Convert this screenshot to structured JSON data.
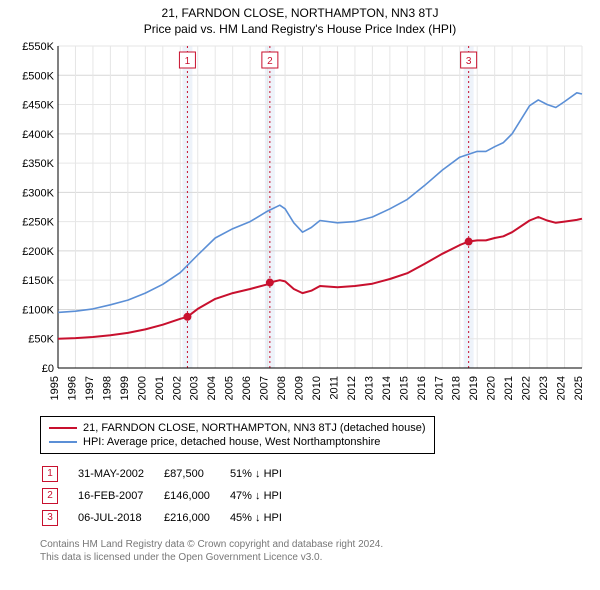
{
  "title_line1": "21, FARNDON CLOSE, NORTHAMPTON, NN3 8TJ",
  "title_line2": "Price paid vs. HM Land Registry's House Price Index (HPI)",
  "chart": {
    "type": "line",
    "background_color": "#ffffff",
    "grid_color": "#e6e6e6",
    "grid_emph_color": "#d7d7d7",
    "axis_color": "#000000",
    "label_fontsize": 11,
    "ylim": [
      0,
      550000
    ],
    "ytick_step": 50000,
    "ytick_prefix": "£",
    "ytick_suffix": "K",
    "x_years": [
      1995,
      1996,
      1997,
      1998,
      1999,
      2000,
      2001,
      2002,
      2003,
      2004,
      2005,
      2006,
      2007,
      2008,
      2009,
      2010,
      2011,
      2012,
      2013,
      2014,
      2015,
      2016,
      2017,
      2018,
      2019,
      2020,
      2021,
      2022,
      2023,
      2024,
      2025
    ],
    "marker_line_color": "#c8102e",
    "marker_fill_color": "#c8102e",
    "marker_band_color": "#e7eef8",
    "marker_box_border": "#c8102e",
    "marker_box_text": "#c8102e",
    "series": [
      {
        "name": "property",
        "label": "21, FARNDON CLOSE, NORTHAMPTON, NN3 8TJ (detached house)",
        "color": "#c8102e",
        "line_width": 2,
        "data": [
          [
            1995.0,
            50000
          ],
          [
            1996.0,
            51000
          ],
          [
            1997.0,
            53000
          ],
          [
            1998.0,
            56000
          ],
          [
            1999.0,
            60000
          ],
          [
            2000.0,
            66000
          ],
          [
            2001.0,
            74000
          ],
          [
            2002.0,
            84000
          ],
          [
            2002.41,
            87500
          ],
          [
            2003.0,
            101000
          ],
          [
            2004.0,
            118000
          ],
          [
            2005.0,
            128000
          ],
          [
            2006.0,
            135000
          ],
          [
            2007.0,
            143000
          ],
          [
            2007.13,
            146000
          ],
          [
            2007.7,
            150000
          ],
          [
            2008.0,
            148000
          ],
          [
            2008.5,
            135000
          ],
          [
            2009.0,
            128000
          ],
          [
            2009.5,
            132000
          ],
          [
            2010.0,
            140000
          ],
          [
            2011.0,
            138000
          ],
          [
            2012.0,
            140000
          ],
          [
            2013.0,
            144000
          ],
          [
            2014.0,
            152000
          ],
          [
            2015.0,
            162000
          ],
          [
            2016.0,
            178000
          ],
          [
            2017.0,
            195000
          ],
          [
            2018.0,
            210000
          ],
          [
            2018.51,
            216000
          ],
          [
            2019.0,
            218000
          ],
          [
            2019.5,
            218000
          ],
          [
            2020.0,
            222000
          ],
          [
            2020.5,
            225000
          ],
          [
            2021.0,
            232000
          ],
          [
            2022.0,
            252000
          ],
          [
            2022.5,
            258000
          ],
          [
            2023.0,
            252000
          ],
          [
            2023.5,
            248000
          ],
          [
            2024.0,
            250000
          ],
          [
            2024.7,
            253000
          ],
          [
            2025.0,
            255000
          ]
        ]
      },
      {
        "name": "hpi",
        "label": "HPI: Average price, detached house, West Northamptonshire",
        "color": "#5b8fd6",
        "line_width": 1.6,
        "data": [
          [
            1995.0,
            95000
          ],
          [
            1996.0,
            97000
          ],
          [
            1997.0,
            101000
          ],
          [
            1998.0,
            108000
          ],
          [
            1999.0,
            116000
          ],
          [
            2000.0,
            128000
          ],
          [
            2001.0,
            143000
          ],
          [
            2002.0,
            163000
          ],
          [
            2003.0,
            193000
          ],
          [
            2004.0,
            222000
          ],
          [
            2005.0,
            238000
          ],
          [
            2006.0,
            250000
          ],
          [
            2007.0,
            268000
          ],
          [
            2007.7,
            278000
          ],
          [
            2008.0,
            272000
          ],
          [
            2008.5,
            248000
          ],
          [
            2009.0,
            232000
          ],
          [
            2009.5,
            240000
          ],
          [
            2010.0,
            252000
          ],
          [
            2011.0,
            248000
          ],
          [
            2012.0,
            250000
          ],
          [
            2013.0,
            258000
          ],
          [
            2014.0,
            272000
          ],
          [
            2015.0,
            288000
          ],
          [
            2016.0,
            312000
          ],
          [
            2017.0,
            338000
          ],
          [
            2018.0,
            360000
          ],
          [
            2019.0,
            370000
          ],
          [
            2019.5,
            370000
          ],
          [
            2020.0,
            378000
          ],
          [
            2020.5,
            385000
          ],
          [
            2021.0,
            400000
          ],
          [
            2022.0,
            448000
          ],
          [
            2022.5,
            458000
          ],
          [
            2023.0,
            450000
          ],
          [
            2023.5,
            445000
          ],
          [
            2024.0,
            455000
          ],
          [
            2024.7,
            470000
          ],
          [
            2025.0,
            468000
          ]
        ]
      }
    ],
    "markers": [
      {
        "n": "1",
        "x": 2002.41,
        "y": 87500
      },
      {
        "n": "2",
        "x": 2007.13,
        "y": 146000
      },
      {
        "n": "3",
        "x": 2018.51,
        "y": 216000
      }
    ]
  },
  "legend": {
    "items": [
      {
        "color": "#c8102e",
        "label": "21, FARNDON CLOSE, NORTHAMPTON, NN3 8TJ (detached house)"
      },
      {
        "color": "#5b8fd6",
        "label": "HPI: Average price, detached house, West Northamptonshire"
      }
    ]
  },
  "sales": [
    {
      "n": "1",
      "date": "31-MAY-2002",
      "price": "£87,500",
      "delta": "51% ↓ HPI"
    },
    {
      "n": "2",
      "date": "16-FEB-2007",
      "price": "£146,000",
      "delta": "47% ↓ HPI"
    },
    {
      "n": "3",
      "date": "06-JUL-2018",
      "price": "£216,000",
      "delta": "45% ↓ HPI"
    }
  ],
  "footer": {
    "line1": "Contains HM Land Registry data © Crown copyright and database right 2024.",
    "line2": "This data is licensed under the Open Government Licence v3.0."
  }
}
